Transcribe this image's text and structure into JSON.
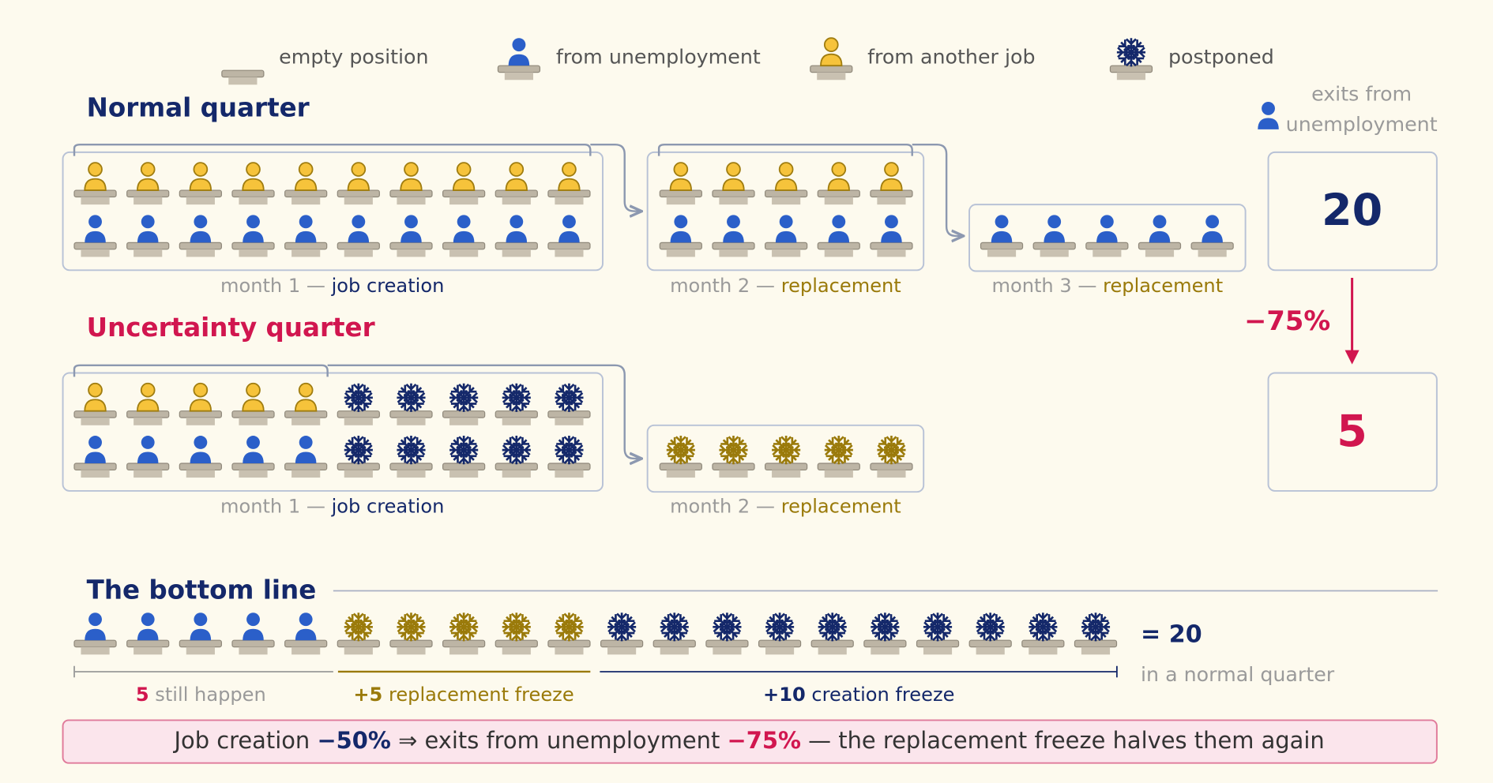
{
  "legend": [
    {
      "label": "empty position"
    },
    {
      "label": "from unemployment"
    },
    {
      "label": "from another job"
    },
    {
      "label": "postponed"
    }
  ],
  "normal": {
    "title": "Normal quarter",
    "months": [
      {
        "prefix": "month 1 —",
        "kind": "job creation"
      },
      {
        "prefix": "month 2 —",
        "kind": "replacement"
      },
      {
        "prefix": "month 3 —",
        "kind": "replacement"
      }
    ]
  },
  "uncertainty": {
    "title": "Uncertainty quarter",
    "months": [
      {
        "prefix": "month 1 —",
        "kind": "job creation"
      },
      {
        "prefix": "month 2 —",
        "kind": "replacement"
      }
    ]
  },
  "exits": {
    "label": [
      "exits from",
      "unemployment"
    ],
    "normal": "20",
    "change": "−75%",
    "uncertainty": "5"
  },
  "bottom": {
    "title": "The bottom line",
    "total": "= 20",
    "total_note": "in a normal quarter",
    "segments": [
      {
        "number": "5",
        "text": "still happen"
      },
      {
        "number": "+5",
        "text": "replacement freeze"
      },
      {
        "number": "+10",
        "text": "creation freeze"
      }
    ]
  },
  "summary": {
    "part1": "Job creation",
    "value1": "−50%",
    "arrow": "⇒",
    "part2": "exits from unemployment",
    "value2": "−75%",
    "part3": "— the replacement freeze halves them again"
  }
}
